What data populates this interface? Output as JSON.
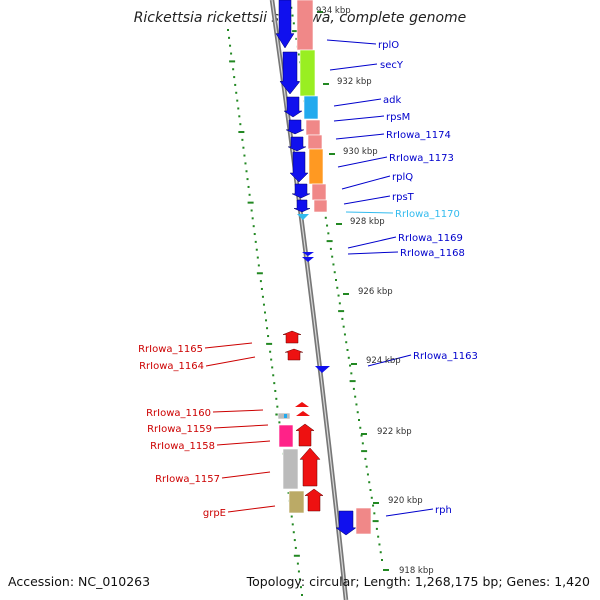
{
  "title": "Rickettsia rickettsii str. Iowa, complete genome",
  "footer": {
    "accession": "Accession: NC_010263",
    "summary": "Topology: circular; Length: 1,268,175 bp; Genes: 1,420"
  },
  "colors": {
    "right_gene_label": "#0000cc",
    "highlight_gene_label": "#33bbee",
    "left_gene_label": "#cc0000",
    "backbone": "#888888",
    "tick": "#228822"
  },
  "ruler_labels": [
    "934 kbp",
    "932 kbp",
    "930 kbp",
    "928 kbp",
    "926 kbp",
    "924 kbp",
    "922 kbp",
    "920 kbp",
    "918 kbp"
  ],
  "right_genes": [
    "rplO",
    "secY",
    "adk",
    "rpsM",
    "RrIowa_1174",
    "RrIowa_1173",
    "rplQ",
    "rpsT",
    "RrIowa_1170",
    "RrIowa_1169",
    "RrIowa_1168",
    "RrIowa_1163",
    "rph"
  ],
  "left_genes": [
    "RrIowa_1165",
    "RrIowa_1164",
    "RrIowa_1160",
    "RrIowa_1159",
    "RrIowa_1158",
    "RrIowa_1157",
    "grpE"
  ]
}
